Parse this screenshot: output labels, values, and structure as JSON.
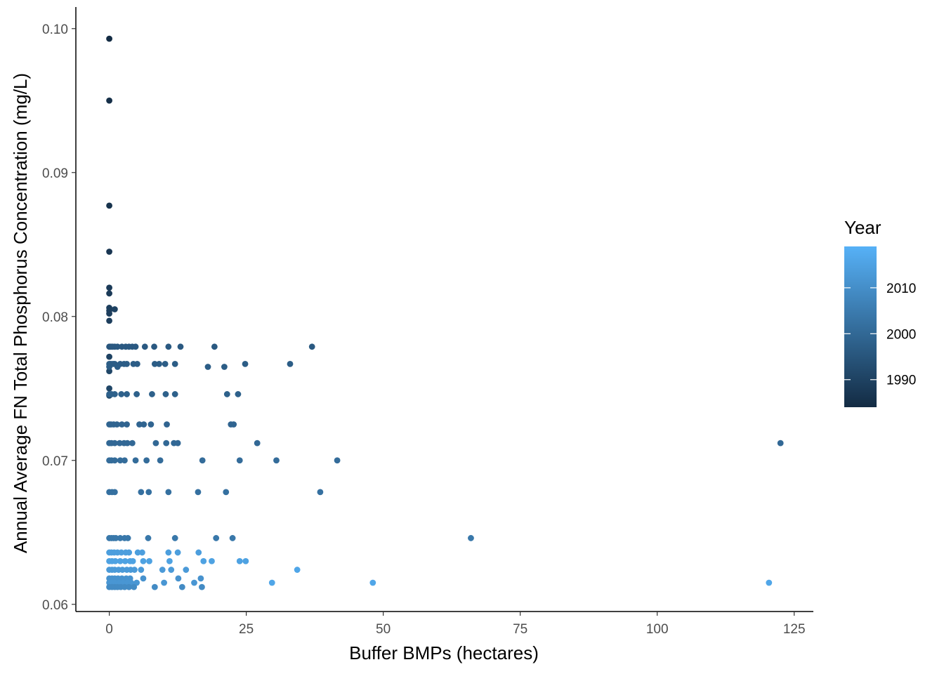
{
  "chart_data": {
    "type": "scatter",
    "title": "",
    "xlabel": "Buffer BMPs (hectares)",
    "ylabel": "Annual Average FN Total Phosphorus Concentration (mg/L)",
    "xlim": [
      -6.1,
      128.5
    ],
    "ylim": [
      0.0595,
      0.1015
    ],
    "x_ticks": [
      0,
      25,
      50,
      75,
      100,
      125
    ],
    "x_tick_labels": [
      "0",
      "25",
      "50",
      "75",
      "100",
      "125"
    ],
    "y_ticks": [
      0.06,
      0.07,
      0.08,
      0.09,
      0.1
    ],
    "y_tick_labels": [
      "0.06",
      "0.07",
      "0.08",
      "0.09",
      "0.10"
    ],
    "grid": false,
    "legend": {
      "title": "Year",
      "placement": "right",
      "type": "colorbar",
      "range": [
        1984,
        2019
      ],
      "breaks": [
        1990,
        2000,
        2010
      ],
      "break_labels": [
        "1990",
        "2000",
        "2010"
      ],
      "color_low": "#132B43",
      "color_high": "#56B1F7"
    },
    "points": [
      [
        0.0,
        0.0993,
        1984
      ],
      [
        0.0,
        0.095,
        1985
      ],
      [
        0.0,
        0.0877,
        1986
      ],
      [
        0.0,
        0.0845,
        1987
      ],
      [
        0.0,
        0.082,
        1988
      ],
      [
        0.0,
        0.0816,
        1988
      ],
      [
        0.0,
        0.0806,
        1989
      ],
      [
        0.0,
        0.0804,
        1989
      ],
      [
        0.0,
        0.0802,
        1989
      ],
      [
        0.0,
        0.0797,
        1989
      ],
      [
        1.0,
        0.0805,
        1990
      ],
      [
        0.0,
        0.0772,
        1990
      ],
      [
        0.0,
        0.0762,
        1991
      ],
      [
        0.0,
        0.075,
        1991
      ],
      [
        0.0,
        0.0745,
        1992
      ],
      [
        0.0,
        0.0779,
        1995
      ],
      [
        0.3,
        0.0779,
        1995
      ],
      [
        0.6,
        0.0779,
        1996
      ],
      [
        1.0,
        0.0779,
        1996
      ],
      [
        1.5,
        0.0779,
        1996
      ],
      [
        2.3,
        0.0779,
        1996
      ],
      [
        3.0,
        0.0779,
        1996
      ],
      [
        3.6,
        0.0779,
        1996
      ],
      [
        4.2,
        0.0779,
        1996
      ],
      [
        4.8,
        0.0779,
        1996
      ],
      [
        6.5,
        0.0779,
        1996
      ],
      [
        8.2,
        0.0779,
        1996
      ],
      [
        10.8,
        0.0779,
        1996
      ],
      [
        13.0,
        0.0779,
        1996
      ],
      [
        19.2,
        0.0779,
        1996
      ],
      [
        37.0,
        0.0779,
        1996
      ],
      [
        0.0,
        0.0767,
        1997
      ],
      [
        0.3,
        0.0767,
        1997
      ],
      [
        0.7,
        0.0767,
        1997
      ],
      [
        1.0,
        0.0767,
        1997
      ],
      [
        2.0,
        0.0767,
        1997
      ],
      [
        2.7,
        0.0767,
        1997
      ],
      [
        3.2,
        0.0767,
        1997
      ],
      [
        4.4,
        0.0767,
        1997
      ],
      [
        5.1,
        0.0767,
        1997
      ],
      [
        8.3,
        0.0767,
        1997
      ],
      [
        9.1,
        0.0767,
        1997
      ],
      [
        10.2,
        0.0767,
        1997
      ],
      [
        12.0,
        0.0767,
        1997
      ],
      [
        18.0,
        0.0765,
        1997
      ],
      [
        21.0,
        0.0765,
        1997
      ],
      [
        24.8,
        0.0767,
        1997
      ],
      [
        33.0,
        0.0767,
        1997
      ],
      [
        0.0,
        0.0765,
        1997
      ],
      [
        1.5,
        0.0765,
        1997
      ],
      [
        0.0,
        0.0746,
        1998
      ],
      [
        0.4,
        0.0746,
        1998
      ],
      [
        1.0,
        0.0746,
        1998
      ],
      [
        2.2,
        0.0746,
        1998
      ],
      [
        3.2,
        0.0746,
        1998
      ],
      [
        5.0,
        0.0746,
        1998
      ],
      [
        7.8,
        0.0746,
        1998
      ],
      [
        10.3,
        0.0746,
        1998
      ],
      [
        12.0,
        0.0746,
        1998
      ],
      [
        21.5,
        0.0746,
        1998
      ],
      [
        23.5,
        0.0746,
        1998
      ],
      [
        0.0,
        0.0725,
        1999
      ],
      [
        0.3,
        0.0725,
        1999
      ],
      [
        0.8,
        0.0725,
        1999
      ],
      [
        1.4,
        0.0725,
        1999
      ],
      [
        2.3,
        0.0725,
        1999
      ],
      [
        3.2,
        0.0725,
        1999
      ],
      [
        5.5,
        0.0725,
        1999
      ],
      [
        6.3,
        0.0725,
        1999
      ],
      [
        7.6,
        0.0725,
        1999
      ],
      [
        10.5,
        0.0725,
        1999
      ],
      [
        22.2,
        0.0725,
        1999
      ],
      [
        22.7,
        0.0725,
        1999
      ],
      [
        0.0,
        0.0712,
        2000
      ],
      [
        0.4,
        0.0712,
        2000
      ],
      [
        1.0,
        0.0712,
        2000
      ],
      [
        1.9,
        0.0712,
        2000
      ],
      [
        2.7,
        0.0712,
        2000
      ],
      [
        3.3,
        0.0712,
        2000
      ],
      [
        4.2,
        0.0712,
        2000
      ],
      [
        8.5,
        0.0712,
        2000
      ],
      [
        10.4,
        0.0712,
        2000
      ],
      [
        11.8,
        0.0712,
        2000
      ],
      [
        12.5,
        0.0712,
        2000
      ],
      [
        27.0,
        0.0712,
        2000
      ],
      [
        122.5,
        0.0712,
        2000
      ],
      [
        0.0,
        0.07,
        2001
      ],
      [
        0.4,
        0.07,
        2001
      ],
      [
        1.0,
        0.07,
        2001
      ],
      [
        2.0,
        0.07,
        2001
      ],
      [
        2.8,
        0.07,
        2001
      ],
      [
        4.8,
        0.07,
        2001
      ],
      [
        6.8,
        0.07,
        2001
      ],
      [
        9.3,
        0.07,
        2001
      ],
      [
        17.0,
        0.07,
        2001
      ],
      [
        23.8,
        0.07,
        2001
      ],
      [
        30.5,
        0.07,
        2001
      ],
      [
        41.6,
        0.07,
        2001
      ],
      [
        0.0,
        0.0678,
        2002
      ],
      [
        0.5,
        0.0678,
        2002
      ],
      [
        1.0,
        0.0678,
        2002
      ],
      [
        5.8,
        0.0678,
        2002
      ],
      [
        7.2,
        0.0678,
        2002
      ],
      [
        10.8,
        0.0678,
        2002
      ],
      [
        16.2,
        0.0678,
        2002
      ],
      [
        21.3,
        0.0678,
        2002
      ],
      [
        38.5,
        0.0678,
        2002
      ],
      [
        0.0,
        0.0646,
        2004
      ],
      [
        0.4,
        0.0646,
        2004
      ],
      [
        0.8,
        0.0646,
        2004
      ],
      [
        1.2,
        0.0646,
        2004
      ],
      [
        2.0,
        0.0646,
        2004
      ],
      [
        2.8,
        0.0646,
        2004
      ],
      [
        3.4,
        0.0646,
        2004
      ],
      [
        7.1,
        0.0646,
        2004
      ],
      [
        12.0,
        0.0646,
        2004
      ],
      [
        19.5,
        0.0646,
        2004
      ],
      [
        22.5,
        0.0646,
        2004
      ],
      [
        66.0,
        0.0646,
        2004
      ],
      [
        0.0,
        0.0636,
        2014
      ],
      [
        0.4,
        0.0636,
        2014
      ],
      [
        0.9,
        0.0636,
        2014
      ],
      [
        1.5,
        0.0636,
        2014
      ],
      [
        2.2,
        0.0636,
        2014
      ],
      [
        3.0,
        0.0636,
        2014
      ],
      [
        3.6,
        0.0636,
        2014
      ],
      [
        5.2,
        0.0636,
        2014
      ],
      [
        6.0,
        0.0636,
        2014
      ],
      [
        10.8,
        0.0636,
        2014
      ],
      [
        12.5,
        0.0636,
        2014
      ],
      [
        16.3,
        0.0636,
        2014
      ],
      [
        0.0,
        0.063,
        2015
      ],
      [
        0.5,
        0.063,
        2015
      ],
      [
        1.1,
        0.063,
        2015
      ],
      [
        2.0,
        0.063,
        2015
      ],
      [
        2.9,
        0.063,
        2015
      ],
      [
        3.8,
        0.063,
        2015
      ],
      [
        4.3,
        0.063,
        2015
      ],
      [
        6.2,
        0.063,
        2015
      ],
      [
        7.3,
        0.063,
        2015
      ],
      [
        11.0,
        0.063,
        2015
      ],
      [
        17.2,
        0.063,
        2015
      ],
      [
        18.7,
        0.063,
        2015
      ],
      [
        23.8,
        0.063,
        2015
      ],
      [
        24.9,
        0.063,
        2015
      ],
      [
        0.0,
        0.0624,
        2013
      ],
      [
        0.5,
        0.0624,
        2013
      ],
      [
        1.0,
        0.0624,
        2013
      ],
      [
        1.7,
        0.0624,
        2013
      ],
      [
        2.4,
        0.0624,
        2013
      ],
      [
        3.2,
        0.0624,
        2013
      ],
      [
        3.9,
        0.0624,
        2013
      ],
      [
        4.6,
        0.0624,
        2013
      ],
      [
        5.8,
        0.0624,
        2013
      ],
      [
        9.7,
        0.0624,
        2013
      ],
      [
        11.3,
        0.0624,
        2013
      ],
      [
        14.0,
        0.0624,
        2013
      ],
      [
        34.3,
        0.0624,
        2016
      ],
      [
        0.0,
        0.0618,
        2011
      ],
      [
        0.5,
        0.0618,
        2011
      ],
      [
        1.0,
        0.0618,
        2011
      ],
      [
        1.6,
        0.0618,
        2011
      ],
      [
        2.3,
        0.0618,
        2011
      ],
      [
        3.1,
        0.0618,
        2011
      ],
      [
        3.8,
        0.0618,
        2011
      ],
      [
        6.2,
        0.0618,
        2011
      ],
      [
        12.6,
        0.0618,
        2011
      ],
      [
        16.7,
        0.0618,
        2011
      ],
      [
        0.0,
        0.0615,
        2012
      ],
      [
        0.5,
        0.0615,
        2012
      ],
      [
        1.0,
        0.0615,
        2012
      ],
      [
        1.8,
        0.0615,
        2012
      ],
      [
        2.5,
        0.0615,
        2012
      ],
      [
        3.3,
        0.0615,
        2012
      ],
      [
        4.0,
        0.0615,
        2012
      ],
      [
        5.0,
        0.0615,
        2012
      ],
      [
        10.0,
        0.0615,
        2012
      ],
      [
        15.5,
        0.0615,
        2012
      ],
      [
        29.7,
        0.0615,
        2016
      ],
      [
        48.1,
        0.0615,
        2016
      ],
      [
        120.4,
        0.0615,
        2016
      ],
      [
        0.0,
        0.0612,
        2009
      ],
      [
        0.5,
        0.0612,
        2009
      ],
      [
        1.0,
        0.0612,
        2009
      ],
      [
        1.5,
        0.0612,
        2009
      ],
      [
        2.1,
        0.0612,
        2009
      ],
      [
        2.8,
        0.0612,
        2009
      ],
      [
        3.6,
        0.0612,
        2009
      ],
      [
        4.5,
        0.0612,
        2009
      ],
      [
        8.3,
        0.0612,
        2009
      ],
      [
        13.3,
        0.0612,
        2009
      ],
      [
        16.9,
        0.0612,
        2009
      ]
    ]
  }
}
